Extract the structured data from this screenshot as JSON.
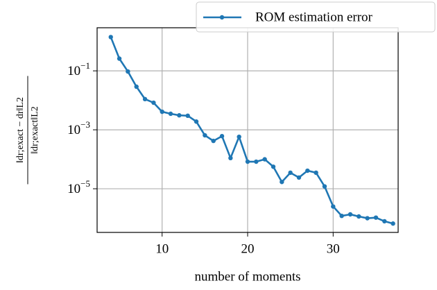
{
  "chart_data": {
    "type": "line",
    "ylabel": {
      "numerator": "‖dr;exact − dr‖L2",
      "denominator": "‖dr;exact‖L2"
    },
    "xlabel": "number of moments",
    "x": [
      4,
      5,
      6,
      7,
      8,
      9,
      10,
      11,
      12,
      13,
      14,
      15,
      16,
      17,
      18,
      19,
      20,
      21,
      22,
      23,
      24,
      25,
      26,
      27,
      28,
      29,
      30,
      31,
      32,
      33,
      34,
      35,
      36,
      37
    ],
    "series": [
      {
        "name": "ROM estimation error",
        "color": "#1f77b4",
        "values": [
          1.4,
          0.26,
          0.095,
          0.029,
          0.011,
          0.0083,
          0.0041,
          0.0035,
          0.0031,
          0.003,
          0.0019,
          0.00065,
          0.00042,
          0.00061,
          0.00011,
          0.00058,
          8.3e-05,
          8.3e-05,
          0.0001,
          5.6e-05,
          1.7e-05,
          3.5e-05,
          2.4e-05,
          4.1e-05,
          3.5e-05,
          1.2e-05,
          2.5e-06,
          1.2e-06,
          1.35e-06,
          1.15e-06,
          1e-06,
          1.05e-06,
          7.9e-07,
          6.6e-07
        ]
      }
    ],
    "xlim": [
      2.4,
      37.6
    ],
    "xticks": [
      10,
      20,
      30
    ],
    "ylim": [
      3.3e-07,
      2.9
    ],
    "ylog": true,
    "yticks": [
      {
        "value": 0.1,
        "label": "10−1"
      },
      {
        "value": 0.001,
        "label": "10−3"
      },
      {
        "value": 1e-05,
        "label": "10−5"
      }
    ],
    "grid": true,
    "legend": "upper right"
  }
}
